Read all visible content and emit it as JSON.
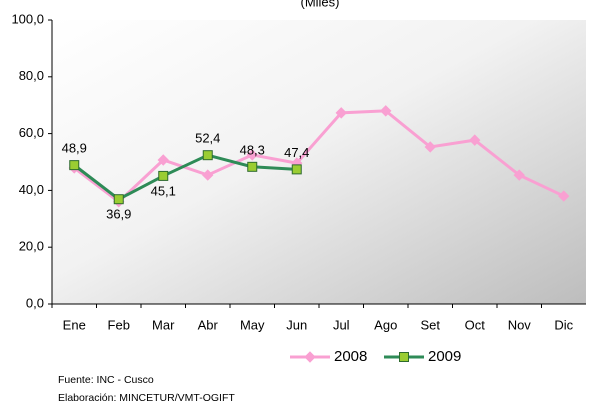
{
  "chart_data": {
    "type": "line",
    "title": "(Miles)",
    "categories": [
      "Ene",
      "Feb",
      "Mar",
      "Abr",
      "May",
      "Jun",
      "Jul",
      "Ago",
      "Set",
      "Oct",
      "Nov",
      "Dic"
    ],
    "series": [
      {
        "name": "2008",
        "color": "#f9a0d2",
        "marker": "diamond",
        "values": [
          47.9,
          36.0,
          50.7,
          45.4,
          52.5,
          49.6,
          67.3,
          68.0,
          55.3,
          57.7,
          45.4,
          38.0
        ]
      },
      {
        "name": "2009",
        "color": "#2e8b57",
        "marker": "square",
        "values": [
          48.9,
          36.9,
          45.1,
          52.4,
          48.3,
          47.4,
          null,
          null,
          null,
          null,
          null,
          null
        ],
        "value_labels": [
          "48,9",
          "36,9",
          "45,1",
          "52,4",
          "48,3",
          "47,4",
          null,
          null,
          null,
          null,
          null,
          null
        ]
      }
    ],
    "ylim": [
      0,
      100
    ],
    "yticks": [
      {
        "value": 0,
        "label": "0,0"
      },
      {
        "value": 20,
        "label": "20,0"
      },
      {
        "value": 40,
        "label": "40,0"
      },
      {
        "value": 60,
        "label": "60,0"
      },
      {
        "value": 80,
        "label": "80,0"
      },
      {
        "value": 100,
        "label": "100,0"
      }
    ],
    "grid": false,
    "legend": "bottom",
    "notes": [
      "Fuente: INC - Cusco",
      "Elaboración: MINCETUR/VMT-OGIFT"
    ]
  }
}
